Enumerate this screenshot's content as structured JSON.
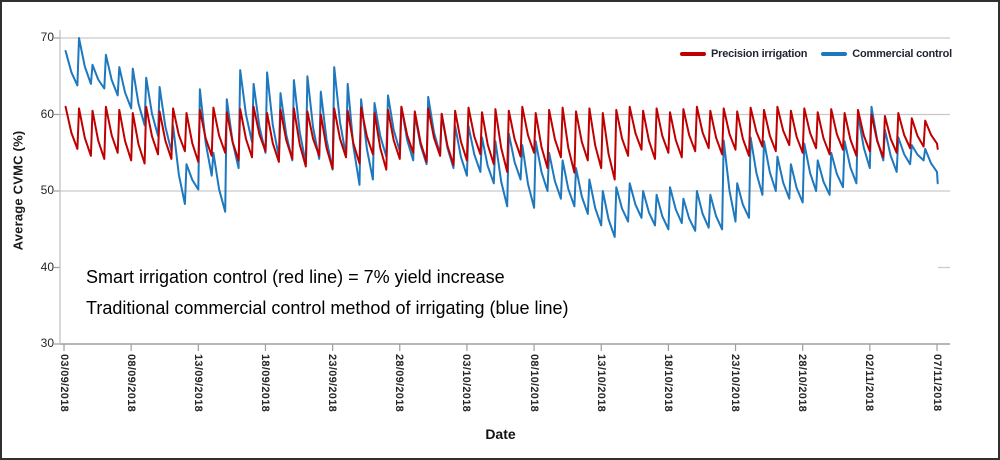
{
  "chart_data": {
    "type": "line",
    "title": "",
    "xlabel": "Date",
    "ylabel": "Average CVMC (%)",
    "ylim": [
      30,
      72
    ],
    "grid": "horizontal",
    "legend_position": "inside-top-right",
    "y_ticks": [
      30,
      40,
      50,
      60,
      70
    ],
    "x_tick_days": [
      0,
      5,
      10,
      15,
      20,
      25,
      30,
      35,
      40,
      45,
      50,
      55,
      60,
      65
    ],
    "x_ticklabels": [
      "03/09/2018",
      "08/09/2018",
      "13/09/2018",
      "18/09/2018",
      "23/09/2018",
      "28/09/2018",
      "03/10/2018",
      "08/10/2018",
      "13/10/2018",
      "18/10/2018",
      "23/10/2018",
      "28/10/2018",
      "02/11/2018",
      "07/11/2018"
    ],
    "series": [
      {
        "name": "Precision irrigation",
        "color": "#C00000",
        "daily_peak_trough": [
          [
            61.0,
            55.5
          ],
          [
            60.8,
            54.6
          ],
          [
            60.5,
            54.2
          ],
          [
            61.0,
            55.0
          ],
          [
            60.6,
            54.0
          ],
          [
            60.2,
            53.6
          ],
          [
            61.0,
            54.8
          ],
          [
            60.4,
            54.2
          ],
          [
            60.8,
            55.2
          ],
          [
            60.2,
            53.8
          ],
          [
            60.6,
            54.6
          ],
          [
            60.9,
            55.0
          ],
          [
            60.3,
            54.0
          ],
          [
            60.7,
            54.4
          ],
          [
            61.0,
            55.2
          ],
          [
            60.2,
            53.8
          ],
          [
            60.6,
            54.2
          ],
          [
            60.8,
            53.2
          ],
          [
            60.4,
            54.6
          ],
          [
            60.0,
            52.9
          ],
          [
            60.8,
            54.4
          ],
          [
            60.5,
            53.6
          ],
          [
            60.9,
            54.8
          ],
          [
            60.2,
            52.8
          ],
          [
            60.6,
            54.2
          ],
          [
            61.0,
            55.0
          ],
          [
            60.4,
            53.8
          ],
          [
            60.8,
            54.6
          ],
          [
            60.1,
            53.4
          ],
          [
            60.5,
            54.0
          ],
          [
            60.9,
            54.8
          ],
          [
            60.3,
            53.5
          ],
          [
            60.7,
            52.5
          ],
          [
            60.5,
            54.5
          ],
          [
            61.0,
            55.0
          ],
          [
            60.2,
            53.0
          ],
          [
            60.6,
            54.4
          ],
          [
            60.9,
            52.4
          ],
          [
            60.4,
            54.0
          ],
          [
            60.8,
            53.0
          ],
          [
            60.2,
            51.5
          ],
          [
            60.6,
            54.6
          ],
          [
            61.0,
            55.4
          ],
          [
            60.5,
            54.2
          ],
          [
            60.8,
            55.0
          ],
          [
            60.3,
            54.4
          ],
          [
            60.7,
            55.2
          ],
          [
            61.0,
            55.6
          ],
          [
            60.5,
            54.8
          ],
          [
            60.8,
            55.4
          ],
          [
            60.4,
            54.6
          ],
          [
            60.9,
            55.8
          ],
          [
            60.6,
            55.2
          ],
          [
            61.0,
            56.0
          ],
          [
            60.5,
            55.0
          ],
          [
            60.8,
            55.6
          ],
          [
            60.3,
            54.8
          ],
          [
            60.7,
            55.4
          ],
          [
            60.2,
            54.6
          ],
          [
            60.6,
            55.2
          ],
          [
            60.0,
            54.4
          ],
          [
            59.8,
            55.0
          ],
          [
            60.2,
            55.6
          ],
          [
            59.5,
            55.8
          ],
          [
            59.2,
            56.2
          ]
        ],
        "end_value": 55.5
      },
      {
        "name": "Commercial control",
        "color": "#1E78BE",
        "daily_peak_trough": [
          [
            68.3,
            63.8
          ],
          [
            70.0,
            64.0
          ],
          [
            66.5,
            63.4
          ],
          [
            67.8,
            62.5
          ],
          [
            66.2,
            60.8
          ],
          [
            66.0,
            58.6
          ],
          [
            64.8,
            57.2
          ],
          [
            63.6,
            55.2
          ],
          [
            58.5,
            48.3
          ],
          [
            53.5,
            50.2
          ],
          [
            63.3,
            52.0
          ],
          [
            55.0,
            47.3
          ],
          [
            62.0,
            53.0
          ],
          [
            65.8,
            56.4
          ],
          [
            64.0,
            55.0
          ],
          [
            65.5,
            54.4
          ],
          [
            62.8,
            54.0
          ],
          [
            64.5,
            53.6
          ],
          [
            65.0,
            54.2
          ],
          [
            63.0,
            52.8
          ],
          [
            66.2,
            54.6
          ],
          [
            64.0,
            50.8
          ],
          [
            62.0,
            51.5
          ],
          [
            61.5,
            54.5
          ],
          [
            62.5,
            55.2
          ],
          [
            61.0,
            54.0
          ],
          [
            60.0,
            53.5
          ],
          [
            62.3,
            54.8
          ],
          [
            60.0,
            53.0
          ],
          [
            58.5,
            52.0
          ],
          [
            58.5,
            52.5
          ],
          [
            57.0,
            51.0
          ],
          [
            56.5,
            48.0
          ],
          [
            57.5,
            51.5
          ],
          [
            56.0,
            47.8
          ],
          [
            56.5,
            50.0
          ],
          [
            55.0,
            49.0
          ],
          [
            54.0,
            48.0
          ],
          [
            53.0,
            47.0
          ],
          [
            51.5,
            45.5
          ],
          [
            50.0,
            44.0
          ],
          [
            50.5,
            46.0
          ],
          [
            51.0,
            46.5
          ],
          [
            50.0,
            45.5
          ],
          [
            49.5,
            45.0
          ],
          [
            50.5,
            45.8
          ],
          [
            49.0,
            44.8
          ],
          [
            50.0,
            45.2
          ],
          [
            49.5,
            45.0
          ],
          [
            56.6,
            46.0
          ],
          [
            51.0,
            46.5
          ],
          [
            57.0,
            49.5
          ],
          [
            56.5,
            50.0
          ],
          [
            54.5,
            49.0
          ],
          [
            53.5,
            48.5
          ],
          [
            56.2,
            50.0
          ],
          [
            54.0,
            49.5
          ],
          [
            55.0,
            50.5
          ],
          [
            56.5,
            51.0
          ],
          [
            60.0,
            53.0
          ],
          [
            61.0,
            54.0
          ],
          [
            58.0,
            52.5
          ],
          [
            57.0,
            53.5
          ],
          [
            56.0,
            54.0
          ],
          [
            55.5,
            52.5
          ]
        ],
        "end_value": 51.0
      }
    ]
  },
  "annotation": {
    "line1": "Smart irrigation control (red line) = 7% yield increase",
    "line2": "Traditional commercial control method of irrigating (blue line)"
  }
}
